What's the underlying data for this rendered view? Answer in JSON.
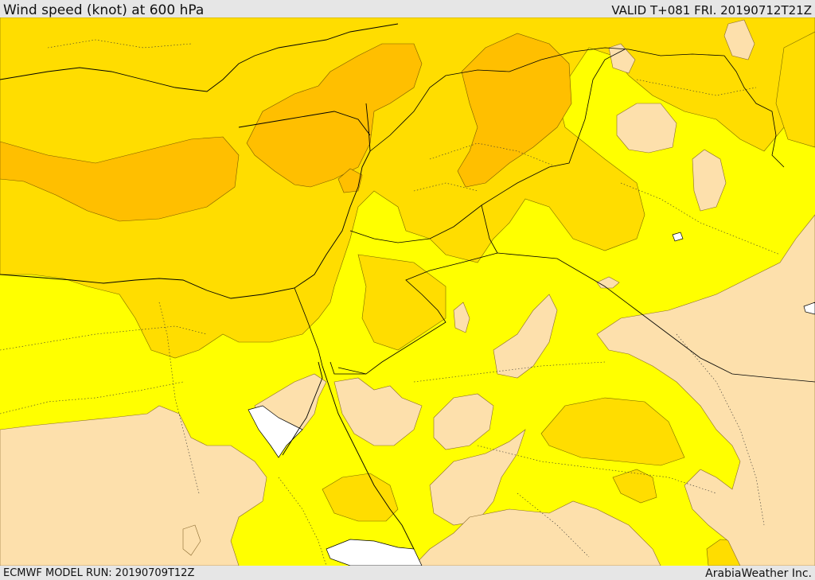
{
  "header": {
    "title": "Wind speed (knot) at 600 hPa",
    "valid": "VALID T+081 FRI. 20190712T21Z"
  },
  "footer": {
    "model_run": "ECMWF MODEL RUN: 20190709T12Z",
    "credit": "ArabiaWeather Inc."
  },
  "map": {
    "colors": {
      "very_low": "#fde0ac",
      "low": "#ffff00",
      "mid": "#ffdd00",
      "high": "#ffbf00",
      "outside": "#ffffff",
      "border": "#000000"
    }
  }
}
